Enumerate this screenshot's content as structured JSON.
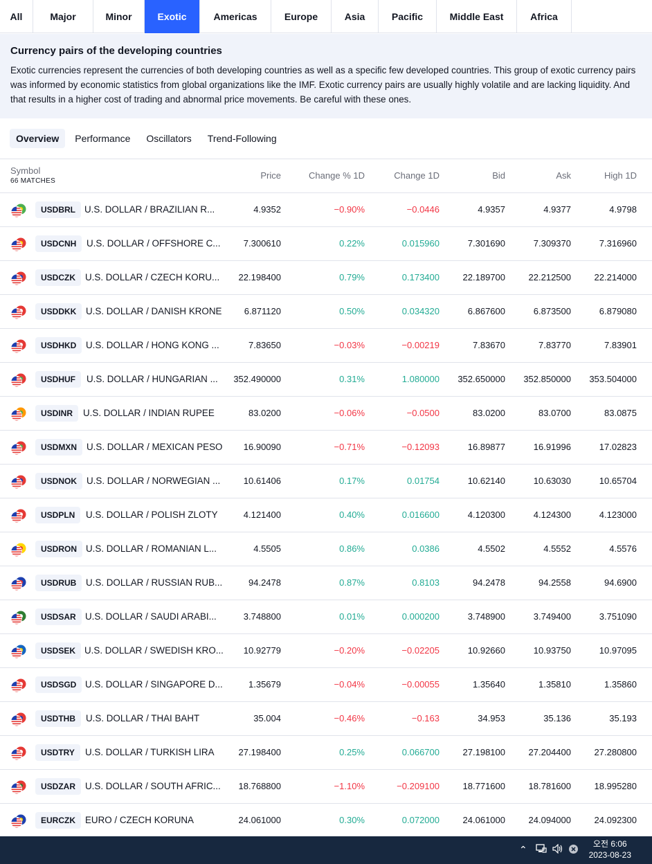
{
  "top_tabs": [
    "All",
    "Major",
    "Minor",
    "Exotic",
    "Americas",
    "Europe",
    "Asia",
    "Pacific",
    "Middle East",
    "Africa"
  ],
  "active_top_tab": "Exotic",
  "description": {
    "title": "Currency pairs of the developing countries",
    "body": "Exotic currencies represent the currencies of both developing countries as well as a specific few developed countries. This group of exotic currency pairs was informed by economic statistics from global organizations like the IMF. Exotic currency pairs are usually highly volatile and are lacking liquidity. And that results in a higher cost of trading and abnormal price movements. Be careful with these ones."
  },
  "sub_tabs": [
    "Overview",
    "Performance",
    "Oscillators",
    "Trend-Following"
  ],
  "active_sub_tab": "Overview",
  "table": {
    "headers": {
      "symbol": "Symbol",
      "matches": "66 MATCHES",
      "price": "Price",
      "change_pct": "Change % 1D",
      "change": "Change 1D",
      "bid": "Bid",
      "ask": "Ask",
      "high": "High 1D"
    },
    "rows": [
      {
        "ticker": "USDBRL",
        "name": "U.S. DOLLAR / BRAZILIAN R...",
        "price": "4.9352",
        "change_pct": "−0.90%",
        "change": "−0.0446",
        "bid": "4.9357",
        "ask": "4.9377",
        "high": "4.9798",
        "dir": "neg",
        "flag_color": "#4caf50",
        "flag_color2": "#ffd600"
      },
      {
        "ticker": "USDCNH",
        "name": "U.S. DOLLAR / OFFSHORE C...",
        "price": "7.300610",
        "change_pct": "0.22%",
        "change": "0.015960",
        "bid": "7.301690",
        "ask": "7.309370",
        "high": "7.316960",
        "dir": "pos",
        "flag_color": "#e53935",
        "flag_color2": "#ffd600"
      },
      {
        "ticker": "USDCZK",
        "name": "U.S. DOLLAR / CZECH KORU...",
        "price": "22.198400",
        "change_pct": "0.79%",
        "change": "0.173400",
        "bid": "22.189700",
        "ask": "22.212500",
        "high": "22.214000",
        "dir": "pos",
        "flag_color": "#e53935",
        "flag_color2": "#1e40af"
      },
      {
        "ticker": "USDDKK",
        "name": "U.S. DOLLAR / DANISH KRONE",
        "price": "6.871120",
        "change_pct": "0.50%",
        "change": "0.034320",
        "bid": "6.867600",
        "ask": "6.873500",
        "high": "6.879080",
        "dir": "pos",
        "flag_color": "#e53935",
        "flag_color2": "#ffffff"
      },
      {
        "ticker": "USDHKD",
        "name": "U.S. DOLLAR / HONG KONG ...",
        "price": "7.83650",
        "change_pct": "−0.03%",
        "change": "−0.00219",
        "bid": "7.83670",
        "ask": "7.83770",
        "high": "7.83901",
        "dir": "neg",
        "flag_color": "#e53935",
        "flag_color2": "#ffffff"
      },
      {
        "ticker": "USDHUF",
        "name": "U.S. DOLLAR / HUNGARIAN ...",
        "price": "352.490000",
        "change_pct": "0.31%",
        "change": "1.080000",
        "bid": "352.650000",
        "ask": "352.850000",
        "high": "353.504000",
        "dir": "pos",
        "flag_color": "#e53935",
        "flag_color2": "#4caf50"
      },
      {
        "ticker": "USDINR",
        "name": "U.S. DOLLAR / INDIAN RUPEE",
        "price": "83.0200",
        "change_pct": "−0.06%",
        "change": "−0.0500",
        "bid": "83.0200",
        "ask": "83.0700",
        "high": "83.0875",
        "dir": "neg",
        "flag_color": "#ff9800",
        "flag_color2": "#4caf50"
      },
      {
        "ticker": "USDMXN",
        "name": "U.S. DOLLAR / MEXICAN PESO",
        "price": "16.90090",
        "change_pct": "−0.71%",
        "change": "−0.12093",
        "bid": "16.89877",
        "ask": "16.91996",
        "high": "17.02823",
        "dir": "neg",
        "flag_color": "#e53935",
        "flag_color2": "#4caf50"
      },
      {
        "ticker": "USDNOK",
        "name": "U.S. DOLLAR / NORWEGIAN ...",
        "price": "10.61406",
        "change_pct": "0.17%",
        "change": "0.01754",
        "bid": "10.62140",
        "ask": "10.63030",
        "high": "10.65704",
        "dir": "pos",
        "flag_color": "#e53935",
        "flag_color2": "#1e40af"
      },
      {
        "ticker": "USDPLN",
        "name": "U.S. DOLLAR / POLISH ZLOTY",
        "price": "4.121400",
        "change_pct": "0.40%",
        "change": "0.016600",
        "bid": "4.120300",
        "ask": "4.124300",
        "high": "4.123000",
        "dir": "pos",
        "flag_color": "#e53935",
        "flag_color2": "#ffffff"
      },
      {
        "ticker": "USDRON",
        "name": "U.S. DOLLAR / ROMANIAN L...",
        "price": "4.5505",
        "change_pct": "0.86%",
        "change": "0.0386",
        "bid": "4.5502",
        "ask": "4.5552",
        "high": "4.5576",
        "dir": "pos",
        "flag_color": "#ffd600",
        "flag_color2": "#e53935"
      },
      {
        "ticker": "USDRUB",
        "name": "U.S. DOLLAR / RUSSIAN RUB...",
        "price": "94.2478",
        "change_pct": "0.87%",
        "change": "0.8103",
        "bid": "94.2478",
        "ask": "94.2558",
        "high": "94.6900",
        "dir": "pos",
        "flag_color": "#1e40af",
        "flag_color2": "#e53935"
      },
      {
        "ticker": "USDSAR",
        "name": "U.S. DOLLAR / SAUDI ARABI...",
        "price": "3.748800",
        "change_pct": "0.01%",
        "change": "0.000200",
        "bid": "3.748900",
        "ask": "3.749400",
        "high": "3.751090",
        "dir": "pos",
        "flag_color": "#2e7d32",
        "flag_color2": "#ffffff"
      },
      {
        "ticker": "USDSEK",
        "name": "U.S. DOLLAR / SWEDISH KRO...",
        "price": "10.92779",
        "change_pct": "−0.20%",
        "change": "−0.02205",
        "bid": "10.92660",
        "ask": "10.93750",
        "high": "10.97095",
        "dir": "neg",
        "flag_color": "#1565c0",
        "flag_color2": "#ffd600"
      },
      {
        "ticker": "USDSGD",
        "name": "U.S. DOLLAR / SINGAPORE D...",
        "price": "1.35679",
        "change_pct": "−0.04%",
        "change": "−0.00055",
        "bid": "1.35640",
        "ask": "1.35810",
        "high": "1.35860",
        "dir": "neg",
        "flag_color": "#e53935",
        "flag_color2": "#ffffff"
      },
      {
        "ticker": "USDTHB",
        "name": "U.S. DOLLAR / THAI BAHT",
        "price": "35.004",
        "change_pct": "−0.46%",
        "change": "−0.163",
        "bid": "34.953",
        "ask": "35.136",
        "high": "35.193",
        "dir": "neg",
        "flag_color": "#e53935",
        "flag_color2": "#1e40af"
      },
      {
        "ticker": "USDTRY",
        "name": "U.S. DOLLAR / TURKISH LIRA",
        "price": "27.198400",
        "change_pct": "0.25%",
        "change": "0.066700",
        "bid": "27.198100",
        "ask": "27.204400",
        "high": "27.280800",
        "dir": "pos",
        "flag_color": "#e53935",
        "flag_color2": "#ffffff"
      },
      {
        "ticker": "USDZAR",
        "name": "U.S. DOLLAR / SOUTH AFRIC...",
        "price": "18.768800",
        "change_pct": "−1.10%",
        "change": "−0.209100",
        "bid": "18.771600",
        "ask": "18.781600",
        "high": "18.995280",
        "dir": "neg",
        "flag_color": "#e53935",
        "flag_color2": "#2e7d32"
      },
      {
        "ticker": "EURCZK",
        "name": "EURO / CZECH KORUNA",
        "price": "24.061000",
        "change_pct": "0.30%",
        "change": "0.072000",
        "bid": "24.061000",
        "ask": "24.094000",
        "high": "24.092300",
        "dir": "pos",
        "flag_color": "#1e40af",
        "flag_color2": "#ffd600"
      }
    ]
  },
  "taskbar": {
    "time": "오전 6:06",
    "date": "2023-08-23",
    "background": "#17283f"
  },
  "colors": {
    "accent": "#2962ff",
    "positive": "#22ab94",
    "negative": "#f23645"
  }
}
